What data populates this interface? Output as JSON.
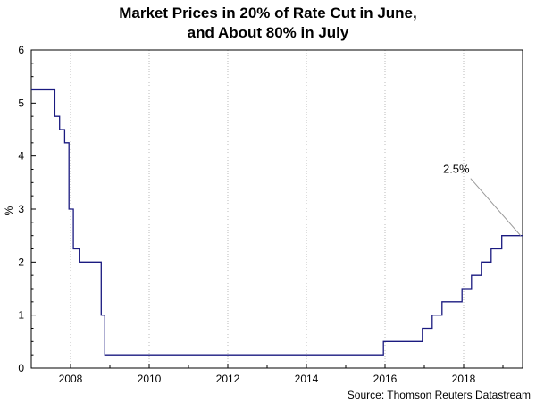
{
  "chart_data": {
    "type": "line",
    "step": true,
    "title_lines": [
      "Market Prices in 20% of Rate Cut in June,",
      "and About 80% in July"
    ],
    "ylabel": "%",
    "xlabel": "",
    "source": "Source: Thomson Reuters Datastream",
    "xlim": [
      2007.0,
      2019.5
    ],
    "ylim": [
      0,
      6
    ],
    "x_ticks": [
      2008,
      2010,
      2012,
      2014,
      2016,
      2018
    ],
    "x_tick_labels": [
      "2008",
      "2010",
      "2012",
      "2014",
      "2016",
      "2018"
    ],
    "y_ticks": [
      0,
      1,
      2,
      3,
      4,
      5,
      6
    ],
    "y_tick_labels": [
      "0",
      "1",
      "2",
      "3",
      "4",
      "5",
      "6"
    ],
    "grid": {
      "vertical": true,
      "horizontal": false
    },
    "line_color": "#1a1a80",
    "series": [
      {
        "x": [
          2007.0,
          2007.6,
          2007.72,
          2007.85,
          2007.96,
          2008.07,
          2008.22,
          2008.27,
          2008.78,
          2008.87,
          2008.95,
          2015.96,
          2016.95,
          2017.2,
          2017.45,
          2017.96,
          2018.2,
          2018.45,
          2018.7,
          2018.97,
          2019.5
        ],
        "y": [
          5.25,
          4.75,
          4.5,
          4.25,
          3.0,
          2.25,
          2.0,
          2.0,
          1.0,
          0.25,
          0.25,
          0.5,
          0.75,
          1.0,
          1.25,
          1.5,
          1.75,
          2.0,
          2.25,
          2.5,
          2.5
        ]
      }
    ],
    "annotations": [
      {
        "text": "2.5%",
        "x": 2019.45,
        "y": 2.5
      }
    ]
  }
}
